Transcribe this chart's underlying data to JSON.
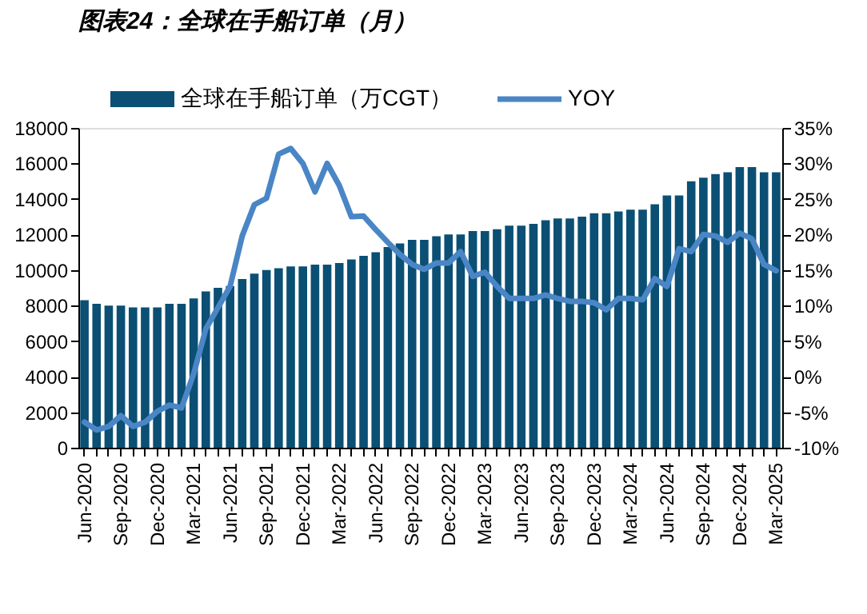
{
  "chart_data": {
    "type": "bar",
    "title": "图表24：全球在手船订单（月）",
    "categories": [
      "Jun-2020",
      null,
      null,
      "Sep-2020",
      null,
      null,
      "Dec-2020",
      null,
      null,
      "Mar-2021",
      null,
      null,
      "Jun-2021",
      null,
      null,
      "Sep-2021",
      null,
      null,
      "Dec-2021",
      null,
      null,
      "Mar-2022",
      null,
      null,
      "Jun-2022",
      null,
      null,
      "Sep-2022",
      null,
      null,
      "Dec-2022",
      null,
      null,
      "Mar-2023",
      null,
      null,
      "Jun-2023",
      null,
      null,
      "Sep-2023",
      null,
      null,
      "Dec-2023",
      null,
      null,
      "Mar-2024",
      null,
      null,
      "Jun-2024",
      null,
      null,
      "Sep-2024",
      null,
      null,
      "Dec-2024",
      null,
      null,
      "Mar-2025"
    ],
    "series": [
      {
        "name": "全球在手船订单（万CGT）",
        "color": "#0b4f74",
        "values": [
          8300,
          8100,
          8000,
          8000,
          7900,
          7900,
          7900,
          8100,
          8100,
          8400,
          8800,
          9000,
          9100,
          9500,
          9800,
          10000,
          10100,
          10200,
          10200,
          10300,
          10300,
          10400,
          10600,
          10800,
          11000,
          11300,
          11500,
          11700,
          11700,
          11900,
          12000,
          12000,
          12200,
          12200,
          12300,
          12500,
          12500,
          12600,
          12800,
          12900,
          12900,
          13000,
          13200,
          13200,
          13300,
          13400,
          13400,
          13700,
          14200,
          14200,
          15000,
          15200,
          15400,
          15500,
          15800,
          15800,
          15500,
          15500
        ]
      },
      {
        "name": "YOY",
        "color": "#4a86c5",
        "type": "line",
        "axis": "y2",
        "values": [
          -6.4,
          -7.5,
          -7.0,
          -5.5,
          -7.0,
          -6.4,
          -4.9,
          -4.0,
          -4.4,
          0.4,
          6.7,
          9.7,
          12.7,
          19.8,
          24.2,
          25.1,
          31.3,
          32.1,
          30.0,
          26.0,
          30.0,
          26.9,
          22.5,
          22.6,
          20.7,
          18.9,
          17.2,
          15.8,
          15.1,
          16.0,
          16.0,
          17.6,
          14.1,
          14.7,
          12.7,
          11.0,
          11.0,
          11.0,
          11.5,
          11.0,
          10.6,
          10.6,
          10.4,
          9.4,
          11.0,
          11.0,
          10.8,
          13.8,
          12.7,
          18.0,
          17.6,
          20.0,
          19.8,
          18.9,
          20.2,
          19.4,
          15.8,
          14.9
        ]
      }
    ],
    "ylim": [
      0,
      18000
    ],
    "yticks": [
      0,
      2000,
      4000,
      6000,
      8000,
      10000,
      12000,
      14000,
      16000,
      18000
    ],
    "y2lim": [
      -10,
      35
    ],
    "y2ticks": [
      {
        "value": -10,
        "label": "-10%"
      },
      {
        "value": -5,
        "label": "-5%"
      },
      {
        "value": 0,
        "label": "0%"
      },
      {
        "value": 5,
        "label": "5%"
      },
      {
        "value": 10,
        "label": "10%"
      },
      {
        "value": 15,
        "label": "15%"
      },
      {
        "value": 20,
        "label": "20%"
      },
      {
        "value": 25,
        "label": "25%"
      },
      {
        "value": 30,
        "label": "30%"
      },
      {
        "value": 35,
        "label": "35%"
      }
    ],
    "grid": false,
    "legend": "top",
    "line_style": "solid",
    "marker": "none"
  }
}
